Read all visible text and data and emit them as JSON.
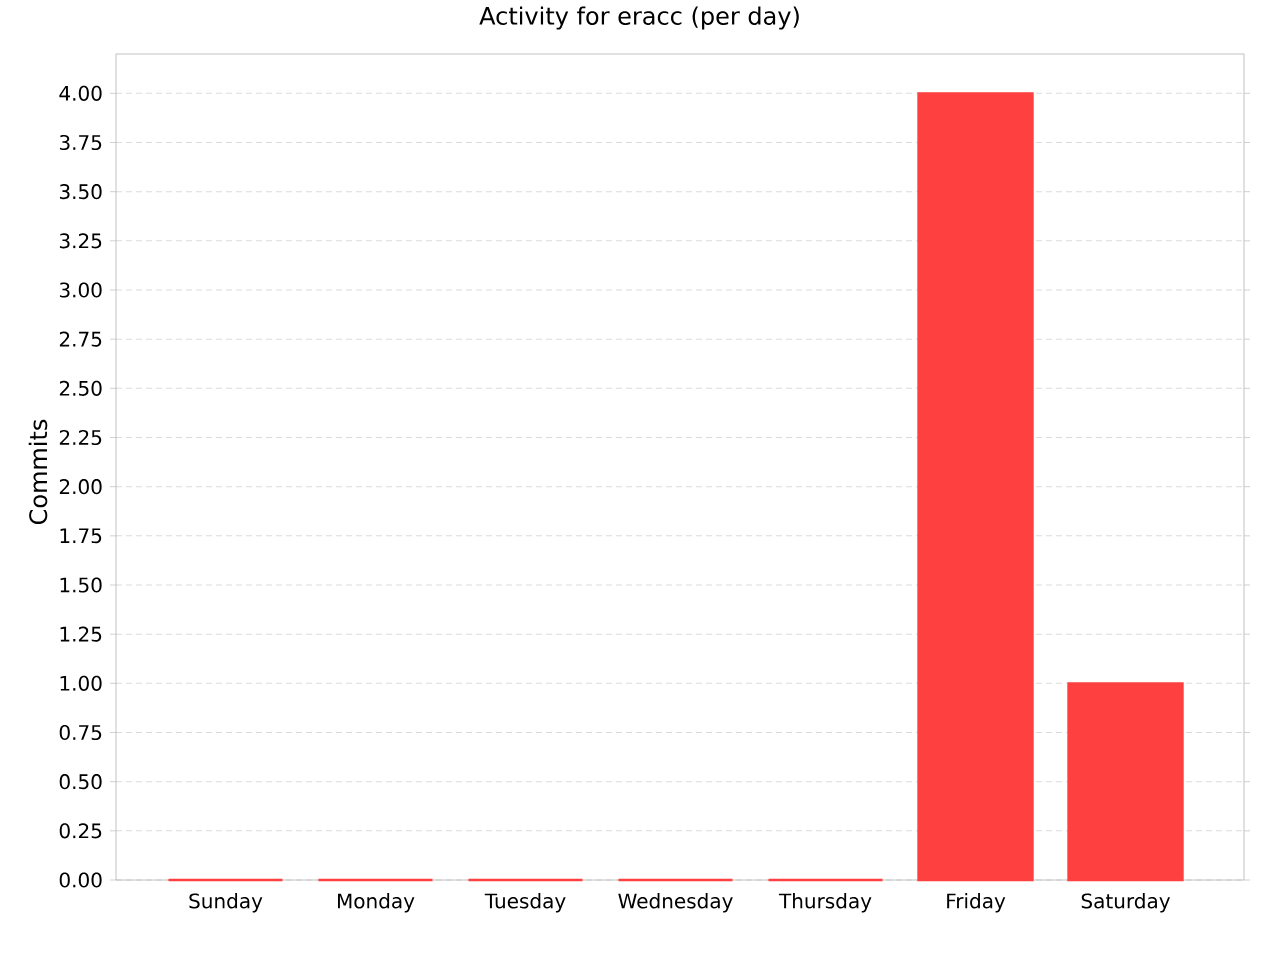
{
  "chart_data": {
    "type": "bar",
    "title": "Activity for eracc (per day)",
    "ylabel": "Commits",
    "categories": [
      "Sunday",
      "Monday",
      "Tuesday",
      "Wednesday",
      "Thursday",
      "Friday",
      "Saturday"
    ],
    "values": [
      0,
      0,
      0,
      0,
      0,
      4,
      1
    ],
    "color": "#ff4040",
    "ylim": [
      0,
      4.2
    ],
    "yticks": [
      {
        "value": 0,
        "label": "0.00"
      },
      {
        "value": 0.25,
        "label": "0.25"
      },
      {
        "value": 0.5,
        "label": "0.50"
      },
      {
        "value": 0.75,
        "label": "0.75"
      },
      {
        "value": 1,
        "label": "1.00"
      },
      {
        "value": 1.25,
        "label": "1.25"
      },
      {
        "value": 1.5,
        "label": "1.50"
      },
      {
        "value": 1.75,
        "label": "1.75"
      },
      {
        "value": 2,
        "label": "2.00"
      },
      {
        "value": 2.25,
        "label": "2.25"
      },
      {
        "value": 2.5,
        "label": "2.50"
      },
      {
        "value": 2.75,
        "label": "2.75"
      },
      {
        "value": 3,
        "label": "3.00"
      },
      {
        "value": 3.25,
        "label": "3.25"
      },
      {
        "value": 3.5,
        "label": "3.50"
      },
      {
        "value": 3.75,
        "label": "3.75"
      },
      {
        "value": 4,
        "label": "4.00"
      }
    ],
    "grid": "y"
  }
}
